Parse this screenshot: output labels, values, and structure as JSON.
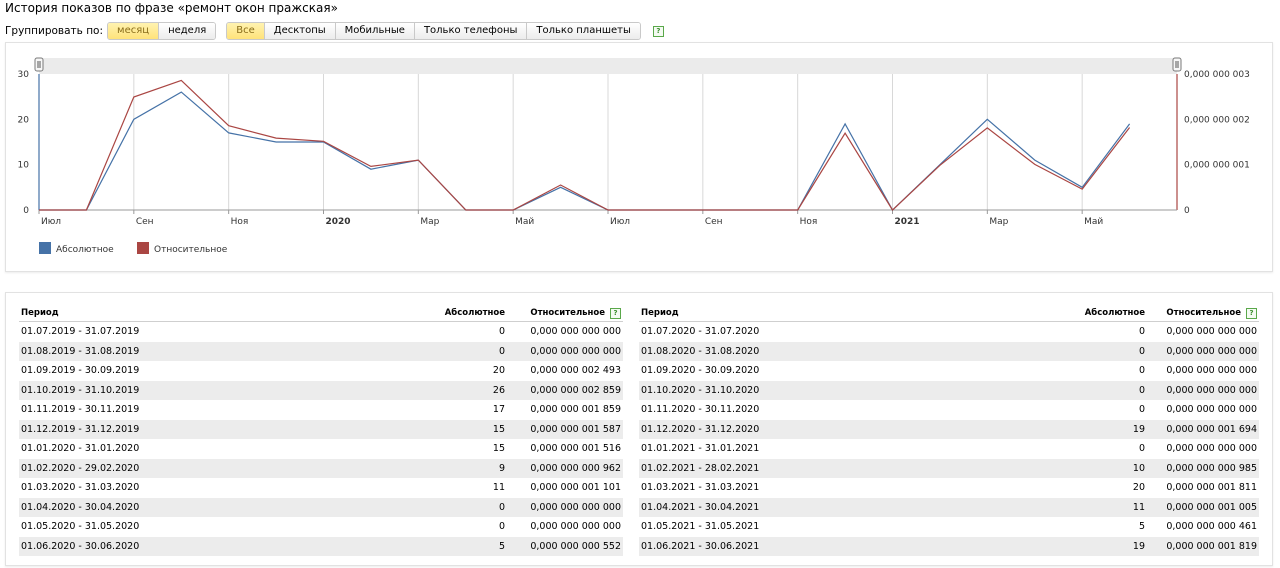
{
  "title": "История показов по фразе «ремонт окон пражская»",
  "toolbar": {
    "group_label": "Группировать по:",
    "group_buttons": [
      "месяц",
      "неделя"
    ],
    "device_buttons": [
      "Все",
      "Десктопы",
      "Мобильные",
      "Только телефоны",
      "Только планшеты"
    ],
    "help": "?"
  },
  "chart_data": {
    "type": "line",
    "x": [
      "2019-07",
      "2019-08",
      "2019-09",
      "2019-10",
      "2019-11",
      "2019-12",
      "2020-01",
      "2020-02",
      "2020-03",
      "2020-04",
      "2020-05",
      "2020-06",
      "2020-07",
      "2020-08",
      "2020-09",
      "2020-10",
      "2020-11",
      "2020-12",
      "2021-01",
      "2021-02",
      "2021-03",
      "2021-04",
      "2021-05",
      "2021-06"
    ],
    "x_tick_labels": [
      "Июл",
      "Сен",
      "Ноя",
      "2020",
      "Мар",
      "Май",
      "Июл",
      "Сен",
      "Ноя",
      "2021",
      "Мар",
      "Май"
    ],
    "y_ticks_left": [
      "0",
      "10",
      "20",
      "30"
    ],
    "y_ticks_right": [
      "0",
      "0,000 000 001",
      "0,000 000 002",
      "0,000 000 003"
    ],
    "ylim_left": [
      0,
      30
    ],
    "ylim_right": [
      0,
      3e-09
    ],
    "series": [
      {
        "name": "Абсолютное",
        "color": "#4572a7",
        "axis": "left",
        "values": [
          0,
          0,
          20,
          26,
          17,
          15,
          15,
          9,
          11,
          0,
          0,
          5,
          0,
          0,
          0,
          0,
          0,
          19,
          0,
          10,
          20,
          11,
          5,
          19
        ]
      },
      {
        "name": "Относительное",
        "color": "#aa4643",
        "axis": "right",
        "values": [
          0,
          0,
          2.493e-09,
          2.859e-09,
          1.859e-09,
          1.587e-09,
          1.516e-09,
          9.62e-10,
          1.101e-09,
          0,
          0,
          5.52e-10,
          0,
          0,
          0,
          0,
          0,
          1.694e-09,
          0,
          9.85e-10,
          1.811e-09,
          1.005e-09,
          4.61e-10,
          1.819e-09
        ]
      }
    ],
    "legend": "bottom-left",
    "grid": true
  },
  "table": {
    "headers": [
      "Период",
      "Абсолютное",
      "Относительное"
    ],
    "left": [
      [
        "01.07.2019 - 31.07.2019",
        "0",
        "0,000 000 000 000"
      ],
      [
        "01.08.2019 - 31.08.2019",
        "0",
        "0,000 000 000 000"
      ],
      [
        "01.09.2019 - 30.09.2019",
        "20",
        "0,000 000 002 493"
      ],
      [
        "01.10.2019 - 31.10.2019",
        "26",
        "0,000 000 002 859"
      ],
      [
        "01.11.2019 - 30.11.2019",
        "17",
        "0,000 000 001 859"
      ],
      [
        "01.12.2019 - 31.12.2019",
        "15",
        "0,000 000 001 587"
      ],
      [
        "01.01.2020 - 31.01.2020",
        "15",
        "0,000 000 001 516"
      ],
      [
        "01.02.2020 - 29.02.2020",
        "9",
        "0,000 000 000 962"
      ],
      [
        "01.03.2020 - 31.03.2020",
        "11",
        "0,000 000 001 101"
      ],
      [
        "01.04.2020 - 30.04.2020",
        "0",
        "0,000 000 000 000"
      ],
      [
        "01.05.2020 - 31.05.2020",
        "0",
        "0,000 000 000 000"
      ],
      [
        "01.06.2020 - 30.06.2020",
        "5",
        "0,000 000 000 552"
      ]
    ],
    "right": [
      [
        "01.07.2020 - 31.07.2020",
        "0",
        "0,000 000 000 000"
      ],
      [
        "01.08.2020 - 31.08.2020",
        "0",
        "0,000 000 000 000"
      ],
      [
        "01.09.2020 - 30.09.2020",
        "0",
        "0,000 000 000 000"
      ],
      [
        "01.10.2020 - 31.10.2020",
        "0",
        "0,000 000 000 000"
      ],
      [
        "01.11.2020 - 30.11.2020",
        "0",
        "0,000 000 000 000"
      ],
      [
        "01.12.2020 - 31.12.2020",
        "19",
        "0,000 000 001 694"
      ],
      [
        "01.01.2021 - 31.01.2021",
        "0",
        "0,000 000 000 000"
      ],
      [
        "01.02.2021 - 28.02.2021",
        "10",
        "0,000 000 000 985"
      ],
      [
        "01.03.2021 - 31.03.2021",
        "20",
        "0,000 000 001 811"
      ],
      [
        "01.04.2021 - 30.04.2021",
        "11",
        "0,000 000 001 005"
      ],
      [
        "01.05.2021 - 31.05.2021",
        "5",
        "0,000 000 000 461"
      ],
      [
        "01.06.2021 - 30.06.2021",
        "19",
        "0,000 000 001 819"
      ]
    ]
  }
}
